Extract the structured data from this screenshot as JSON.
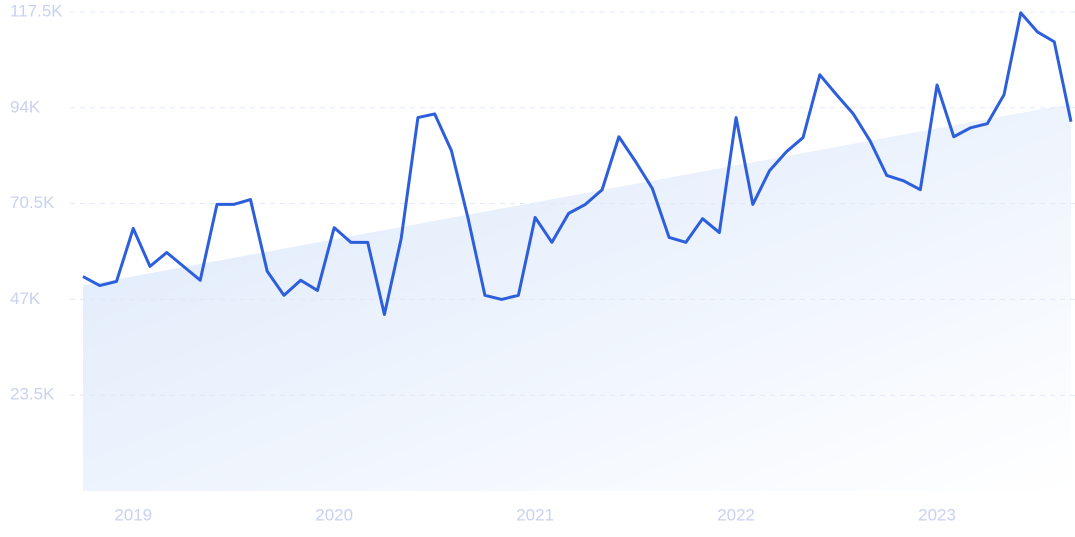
{
  "chart_data": {
    "type": "line",
    "x": [
      2018.75,
      2018.8333,
      2018.9167,
      2019,
      2019.0833,
      2019.1667,
      2019.25,
      2019.3333,
      2019.4167,
      2019.5,
      2019.5833,
      2019.6667,
      2019.75,
      2019.8333,
      2019.9167,
      2020,
      2020.0833,
      2020.1667,
      2020.25,
      2020.3333,
      2020.4167,
      2020.5,
      2020.5833,
      2020.6667,
      2020.75,
      2020.8333,
      2020.9167,
      2021,
      2021.0833,
      2021.1667,
      2021.25,
      2021.3333,
      2021.4167,
      2021.5,
      2021.5833,
      2021.6667,
      2021.75,
      2021.8333,
      2021.9167,
      2022,
      2022.0833,
      2022.1667,
      2022.25,
      2022.3333,
      2022.4167,
      2022.5,
      2022.5833,
      2022.6667,
      2022.75,
      2022.8333,
      2022.9167,
      2023,
      2023.0833,
      2023.1667,
      2023.25,
      2023.3333,
      2023.4167,
      2023.5,
      2023.5833,
      2023.6667
    ],
    "series": [
      {
        "color": "#2d5fdc",
        "values": [
          52600,
          50400,
          51400,
          64400,
          55100,
          58500,
          55100,
          51700,
          70300,
          70300,
          71500,
          53900,
          48000,
          51700,
          49200,
          64600,
          61000,
          61000,
          43300,
          61900,
          91600,
          92500,
          83500,
          66800,
          48000,
          47000,
          48000,
          67100,
          61000,
          68100,
          70300,
          73900,
          86900,
          80800,
          74200,
          62200,
          61000,
          66800,
          63400,
          91600,
          70300,
          78600,
          83200,
          86700,
          102100,
          97200,
          92500,
          85900,
          77400,
          76100,
          73900,
          99600,
          86900,
          89100,
          90100,
          97200,
          117300,
          112600,
          110200,
          90600
        ]
      }
    ],
    "trend": {
      "color": "#dce8fb",
      "x": [
        2018.75,
        2023.6667
      ],
      "values": [
        50400,
        95000
      ]
    },
    "xlim": [
      2018.75,
      2023.6667
    ],
    "xticks": [
      2019,
      2020,
      2021,
      2022,
      2023
    ],
    "ylim": [
      0,
      117500
    ],
    "yticks": [
      {
        "value": 23500,
        "label": "23.5K"
      },
      {
        "value": 47000,
        "label": "47K"
      },
      {
        "value": 70500,
        "label": "70.5K"
      },
      {
        "value": 94000,
        "label": "94K"
      },
      {
        "value": 117500,
        "label": "117.5K"
      }
    ],
    "grid": true
  }
}
